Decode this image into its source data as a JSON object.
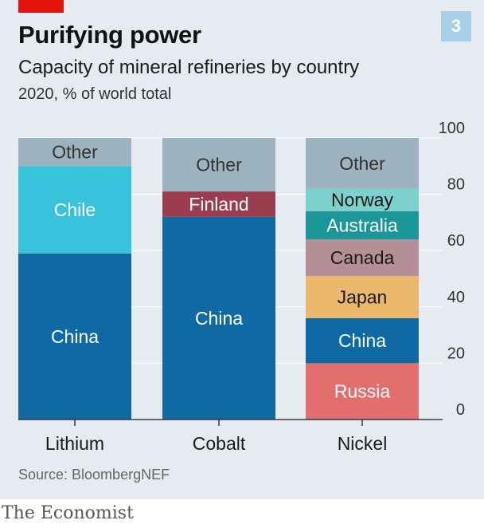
{
  "header": {
    "title": "Purifying power",
    "badge": "3",
    "subtitle": "Capacity of mineral refineries by country",
    "unit_note": "2020, % of world total"
  },
  "footer": {
    "source": "Source: BloombergNEF",
    "brand": "The Economist"
  },
  "colors": {
    "background": "#e5ebf1",
    "accent_red": "#e3120b",
    "badge": "#a7d0e8",
    "gridline": "#ffffff",
    "axis": "#3a3a3a"
  },
  "chart_data": {
    "type": "bar",
    "stacked": true,
    "categories": [
      "Lithium",
      "Cobalt",
      "Nickel"
    ],
    "ylim": [
      0,
      100
    ],
    "yticks": [
      0,
      20,
      40,
      60,
      80,
      100
    ],
    "ylabel_position": "right",
    "grid": true,
    "segments": [
      [
        {
          "label": "China",
          "value": 59,
          "color": "#0f6aa3",
          "text_color": "#ffffff"
        },
        {
          "label": "Chile",
          "value": 31,
          "color": "#38c3dd",
          "text_color": "#ffffff"
        },
        {
          "label": "Other",
          "value": 10,
          "color": "#9eb3c0",
          "text_color": "#333333"
        }
      ],
      [
        {
          "label": "China",
          "value": 72,
          "color": "#0f6aa3",
          "text_color": "#ffffff"
        },
        {
          "label": "Finland",
          "value": 9,
          "color": "#9b3d4e",
          "text_color": "#ffffff"
        },
        {
          "label": "Other",
          "value": 19,
          "color": "#9eb3c0",
          "text_color": "#333333"
        }
      ],
      [
        {
          "label": "Russia",
          "value": 20,
          "color": "#e26e6e",
          "text_color": "#ffffff"
        },
        {
          "label": "China",
          "value": 16,
          "color": "#0f6aa3",
          "text_color": "#ffffff"
        },
        {
          "label": "Japan",
          "value": 15,
          "color": "#e9b86a",
          "text_color": "#1a1a1a"
        },
        {
          "label": "Canada",
          "value": 13,
          "color": "#b58f98",
          "text_color": "#1a1a1a"
        },
        {
          "label": "Australia",
          "value": 10,
          "color": "#1b9799",
          "text_color": "#ffffff"
        },
        {
          "label": "Norway",
          "value": 8,
          "color": "#7dd1cd",
          "text_color": "#1a1a1a"
        },
        {
          "label": "Other",
          "value": 18,
          "color": "#9eb3c0",
          "text_color": "#333333"
        }
      ]
    ]
  }
}
